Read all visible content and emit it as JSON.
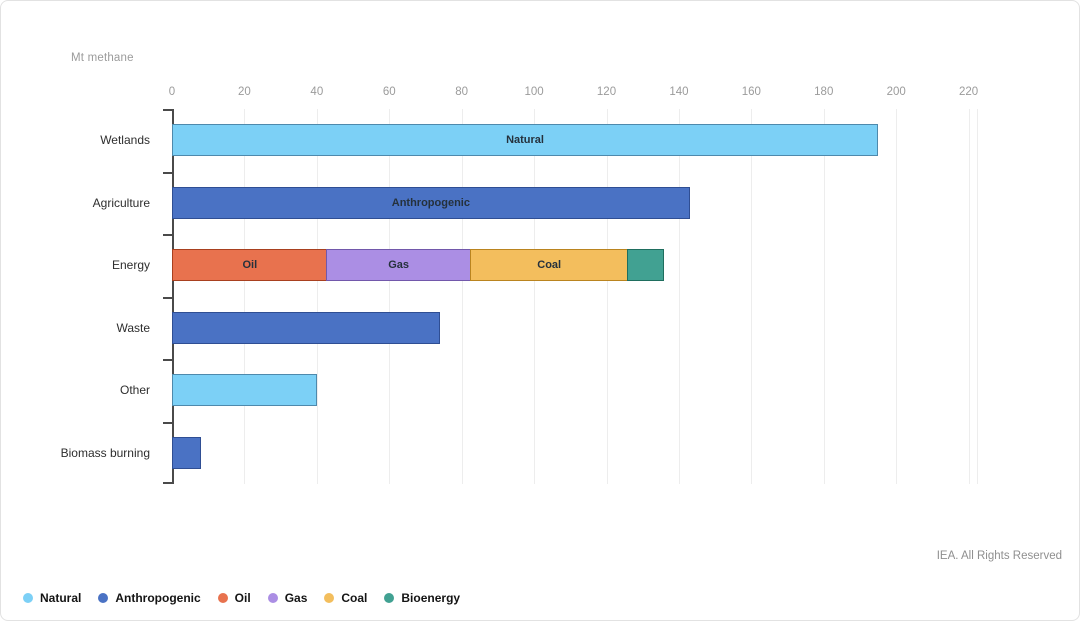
{
  "frame": {
    "unit_label": "Mt methane",
    "footer_credit": "IEA. All Rights Reserved"
  },
  "chart_data": {
    "type": "bar",
    "orientation": "horizontal",
    "title": "",
    "xlabel": "Mt methane",
    "ylabel": "",
    "xlim": [
      0,
      222.6
    ],
    "grid": true,
    "x_ticks": [
      0,
      20,
      40,
      60,
      80,
      100,
      120,
      140,
      160,
      180,
      200,
      220
    ],
    "categories": [
      "Wetlands",
      "Agriculture",
      "Energy",
      "Waste",
      "Other",
      "Biomass burning"
    ],
    "series": {
      "Natural": {
        "fill": "#7CD0F6",
        "border": "#4E89AC"
      },
      "Anthropogenic": {
        "fill": "#4A72C4",
        "border": "#2F4E93"
      },
      "Oil": {
        "fill": "#E8724E",
        "border": "#A8401F"
      },
      "Gas": {
        "fill": "#AB8EE4",
        "border": "#7258AB"
      },
      "Coal": {
        "fill": "#F3BE5D",
        "border": "#BA841F"
      },
      "Bioenergy": {
        "fill": "#41A192",
        "border": "#1F6E5E"
      }
    },
    "bars": [
      {
        "category": "Wetlands",
        "segments": [
          {
            "series": "Natural",
            "value": 195,
            "label": "Natural"
          }
        ]
      },
      {
        "category": "Agriculture",
        "segments": [
          {
            "series": "Anthropogenic",
            "value": 143,
            "label": "Anthropogenic"
          }
        ]
      },
      {
        "category": "Energy",
        "segments": [
          {
            "series": "Oil",
            "value": 43,
            "label": "Oil"
          },
          {
            "series": "Gas",
            "value": 40,
            "label": "Gas"
          },
          {
            "series": "Coal",
            "value": 44,
            "label": "Coal"
          },
          {
            "series": "Bioenergy",
            "value": 10,
            "label": ""
          }
        ]
      },
      {
        "category": "Waste",
        "segments": [
          {
            "series": "Anthropogenic",
            "value": 74,
            "label": ""
          }
        ]
      },
      {
        "category": "Other",
        "segments": [
          {
            "series": "Natural",
            "value": 40,
            "label": ""
          }
        ]
      },
      {
        "category": "Biomass burning",
        "segments": [
          {
            "series": "Anthropogenic",
            "value": 8,
            "label": ""
          }
        ]
      }
    ],
    "legend": [
      "Natural",
      "Anthropogenic",
      "Oil",
      "Gas",
      "Coal",
      "Bioenergy"
    ],
    "legend_position": "bottom-left"
  }
}
